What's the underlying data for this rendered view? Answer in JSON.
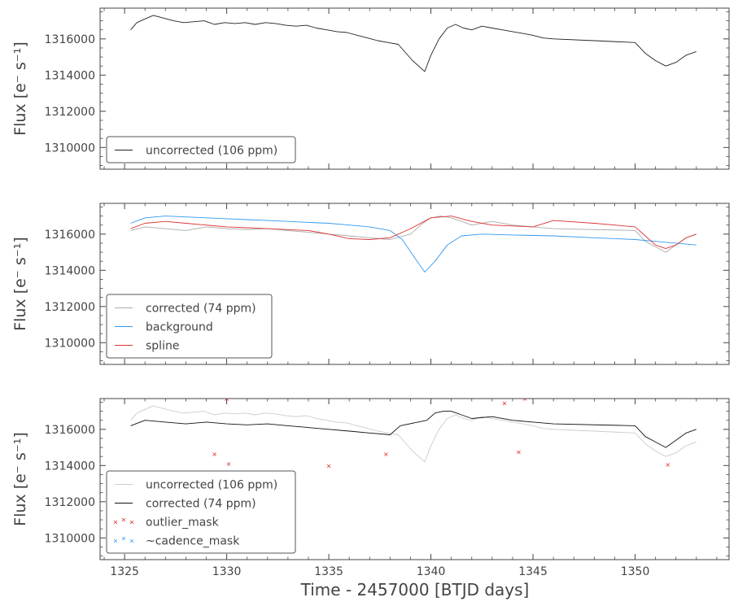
{
  "figure": {
    "xlabel": "Time - 2457000 [BTJD days]",
    "ylabel": "Flux [e⁻ s⁻¹]"
  },
  "chart_data": [
    {
      "type": "line",
      "panel": "top",
      "xlim": [
        1323.8,
        1354.6
      ],
      "ylim": [
        1308800,
        1317700
      ],
      "x_ticks": [
        1325,
        1330,
        1335,
        1340,
        1345,
        1350
      ],
      "y_ticks": [
        1310000,
        1312000,
        1314000,
        1316000
      ],
      "y_tick_labels": [
        "1310000",
        "1312000",
        "1314000",
        "1316000"
      ],
      "legend_position": "lower-left",
      "series": [
        {
          "name": "uncorrected (106 ppm)",
          "color": "#222222",
          "x": [
            1325.3,
            1325.6,
            1326.0,
            1326.4,
            1326.9,
            1327.4,
            1327.9,
            1328.4,
            1328.9,
            1329.4,
            1329.9,
            1330.4,
            1330.9,
            1331.4,
            1331.9,
            1332.4,
            1332.9,
            1333.4,
            1333.9,
            1334.4,
            1334.9,
            1335.4,
            1335.9,
            1336.4,
            1336.9,
            1337.4,
            1337.9,
            1338.4,
            1339.1,
            1339.7,
            1340.0,
            1340.4,
            1340.8,
            1341.2,
            1341.6,
            1342.0,
            1342.5,
            1343.0,
            1343.5,
            1344.0,
            1344.5,
            1345.0,
            1345.5,
            1346.0,
            1348.0,
            1350.0,
            1350.5,
            1351.0,
            1351.5,
            1352.0,
            1352.5,
            1353.0
          ],
          "y": [
            1316500,
            1316900,
            1317100,
            1317300,
            1317150,
            1317000,
            1316900,
            1316950,
            1317000,
            1316800,
            1316900,
            1316850,
            1316900,
            1316800,
            1316900,
            1316850,
            1316750,
            1316700,
            1316750,
            1316600,
            1316500,
            1316400,
            1316350,
            1316200,
            1316050,
            1315900,
            1315800,
            1315700,
            1314800,
            1314200,
            1315100,
            1316000,
            1316600,
            1316800,
            1316600,
            1316500,
            1316700,
            1316600,
            1316500,
            1316400,
            1316300,
            1316200,
            1316050,
            1316000,
            1315900,
            1315800,
            1315200,
            1314800,
            1314500,
            1314700,
            1315100,
            1315300
          ]
        }
      ]
    },
    {
      "type": "line",
      "panel": "middle",
      "xlim": [
        1323.8,
        1354.6
      ],
      "ylim": [
        1308800,
        1317700
      ],
      "x_ticks": [
        1325,
        1330,
        1335,
        1340,
        1345,
        1350
      ],
      "y_ticks": [
        1310000,
        1312000,
        1314000,
        1316000
      ],
      "y_tick_labels": [
        "1310000",
        "1312000",
        "1314000",
        "1316000"
      ],
      "legend_position": "lower-left",
      "series": [
        {
          "name": "corrected (74 ppm)",
          "color": "#aaaaaa",
          "x": [
            1325.3,
            1326.0,
            1327.0,
            1328.0,
            1329.0,
            1330.0,
            1331.0,
            1332.0,
            1333.0,
            1334.0,
            1335.0,
            1336.0,
            1337.0,
            1338.0,
            1339.0,
            1339.6,
            1340.0,
            1340.5,
            1341.0,
            1341.5,
            1342.0,
            1343.0,
            1344.0,
            1345.0,
            1346.0,
            1350.0,
            1350.5,
            1351.0,
            1351.5,
            1352.0,
            1352.5,
            1353.0
          ],
          "y": [
            1316200,
            1316400,
            1316300,
            1316200,
            1316400,
            1316300,
            1316250,
            1316300,
            1316200,
            1316100,
            1316000,
            1315900,
            1315800,
            1315700,
            1316000,
            1316600,
            1316900,
            1317000,
            1316900,
            1316700,
            1316500,
            1316700,
            1316500,
            1316400,
            1316300,
            1316200,
            1315600,
            1315300,
            1315000,
            1315400,
            1315800,
            1316000
          ]
        },
        {
          "name": "background",
          "color": "#3399ee",
          "x": [
            1325.3,
            1326.0,
            1327.0,
            1328.0,
            1329.0,
            1330.0,
            1331.0,
            1332.0,
            1333.0,
            1334.0,
            1335.0,
            1336.0,
            1337.0,
            1338.0,
            1338.6,
            1339.2,
            1339.7,
            1340.2,
            1340.8,
            1341.5,
            1342.5,
            1344.0,
            1346.0,
            1348.0,
            1350.0,
            1351.0,
            1352.0,
            1353.0
          ],
          "y": [
            1316600,
            1316900,
            1317000,
            1316950,
            1316900,
            1316850,
            1316800,
            1316750,
            1316700,
            1316650,
            1316600,
            1316500,
            1316400,
            1316200,
            1315700,
            1314700,
            1313900,
            1314500,
            1315400,
            1315900,
            1316000,
            1315950,
            1315900,
            1315800,
            1315700,
            1315600,
            1315500,
            1315400
          ]
        },
        {
          "name": "spline",
          "color": "#dd3333",
          "x": [
            1325.3,
            1326.0,
            1327.0,
            1328.0,
            1329.0,
            1330.0,
            1331.0,
            1332.0,
            1333.0,
            1334.0,
            1335.0,
            1336.0,
            1337.0,
            1338.0,
            1339.0,
            1340.0,
            1341.0,
            1342.0,
            1343.0,
            1344.0,
            1345.0,
            1346.0,
            1348.0,
            1350.0,
            1350.5,
            1351.0,
            1351.5,
            1352.0,
            1352.5,
            1353.0
          ],
          "y": [
            1316300,
            1316600,
            1316700,
            1316600,
            1316500,
            1316400,
            1316350,
            1316300,
            1316250,
            1316200,
            1316000,
            1315750,
            1315700,
            1315800,
            1316300,
            1316900,
            1317000,
            1316700,
            1316500,
            1316450,
            1316400,
            1316750,
            1316600,
            1316400,
            1315900,
            1315400,
            1315200,
            1315400,
            1315800,
            1316000
          ]
        }
      ]
    },
    {
      "type": "line",
      "panel": "bottom",
      "xlim": [
        1323.8,
        1354.6
      ],
      "ylim": [
        1308800,
        1317700
      ],
      "x_ticks": [
        1325,
        1330,
        1335,
        1340,
        1345,
        1350
      ],
      "x_tick_labels": [
        "1325",
        "1330",
        "1335",
        "1340",
        "1345",
        "1350"
      ],
      "y_ticks": [
        1310000,
        1312000,
        1314000,
        1316000
      ],
      "y_tick_labels": [
        "1310000",
        "1312000",
        "1314000",
        "1316000"
      ],
      "legend_position": "lower-left",
      "series": [
        {
          "name": "uncorrected (106 ppm)",
          "color": "#cccccc",
          "x": [
            1325.3,
            1325.6,
            1326.0,
            1326.4,
            1326.9,
            1327.4,
            1327.9,
            1328.4,
            1328.9,
            1329.4,
            1329.9,
            1330.4,
            1330.9,
            1331.4,
            1331.9,
            1332.4,
            1332.9,
            1333.4,
            1333.9,
            1334.4,
            1334.9,
            1335.4,
            1335.9,
            1336.4,
            1336.9,
            1337.4,
            1337.9,
            1338.4,
            1339.1,
            1339.7,
            1340.0,
            1340.4,
            1340.8,
            1341.2,
            1341.6,
            1342.0,
            1342.5,
            1343.0,
            1343.5,
            1344.0,
            1344.5,
            1345.0,
            1345.5,
            1346.0,
            1348.0,
            1350.0,
            1350.5,
            1351.0,
            1351.5,
            1352.0,
            1352.5,
            1353.0
          ],
          "y": [
            1316500,
            1316900,
            1317100,
            1317300,
            1317150,
            1317000,
            1316900,
            1316950,
            1317000,
            1316800,
            1316900,
            1316850,
            1316900,
            1316800,
            1316900,
            1316850,
            1316750,
            1316700,
            1316750,
            1316600,
            1316500,
            1316400,
            1316350,
            1316200,
            1316050,
            1315900,
            1315800,
            1315700,
            1314800,
            1314200,
            1315100,
            1316000,
            1316600,
            1316800,
            1316600,
            1316500,
            1316700,
            1316600,
            1316500,
            1316400,
            1316300,
            1316200,
            1316050,
            1316000,
            1315900,
            1315800,
            1315200,
            1314800,
            1314500,
            1314700,
            1315100,
            1315300
          ]
        },
        {
          "name": "corrected (74 ppm)",
          "color": "#111111",
          "x": [
            1325.3,
            1326.0,
            1327.0,
            1328.0,
            1329.0,
            1330.0,
            1331.0,
            1332.0,
            1333.0,
            1334.0,
            1335.0,
            1336.0,
            1337.0,
            1338.0,
            1338.5,
            1339.8,
            1340.2,
            1340.6,
            1341.0,
            1341.5,
            1342.0,
            1343.0,
            1344.0,
            1345.0,
            1346.0,
            1350.0,
            1350.5,
            1351.0,
            1351.5,
            1352.0,
            1352.5,
            1353.0
          ],
          "y": [
            1316200,
            1316500,
            1316400,
            1316300,
            1316400,
            1316300,
            1316250,
            1316300,
            1316200,
            1316100,
            1316000,
            1315900,
            1315800,
            1315700,
            1316200,
            1316500,
            1316900,
            1317000,
            1317000,
            1316800,
            1316600,
            1316700,
            1316500,
            1316400,
            1316300,
            1316200,
            1315600,
            1315300,
            1315000,
            1315400,
            1315800,
            1316000
          ]
        }
      ],
      "markers": [
        {
          "name": "outlier_mask",
          "color": "#dd2222",
          "x": [
            1329.4,
            1330.0,
            1330.1,
            1335.0,
            1337.8,
            1343.6,
            1344.3,
            1344.6,
            1351.6
          ],
          "y": [
            1314650,
            1317700,
            1314100,
            1314000,
            1314650,
            1317450,
            1314750,
            1317700,
            1314050
          ]
        },
        {
          "name": "~cadence_mask",
          "color": "#3399ee",
          "x": [],
          "y": []
        }
      ]
    }
  ]
}
